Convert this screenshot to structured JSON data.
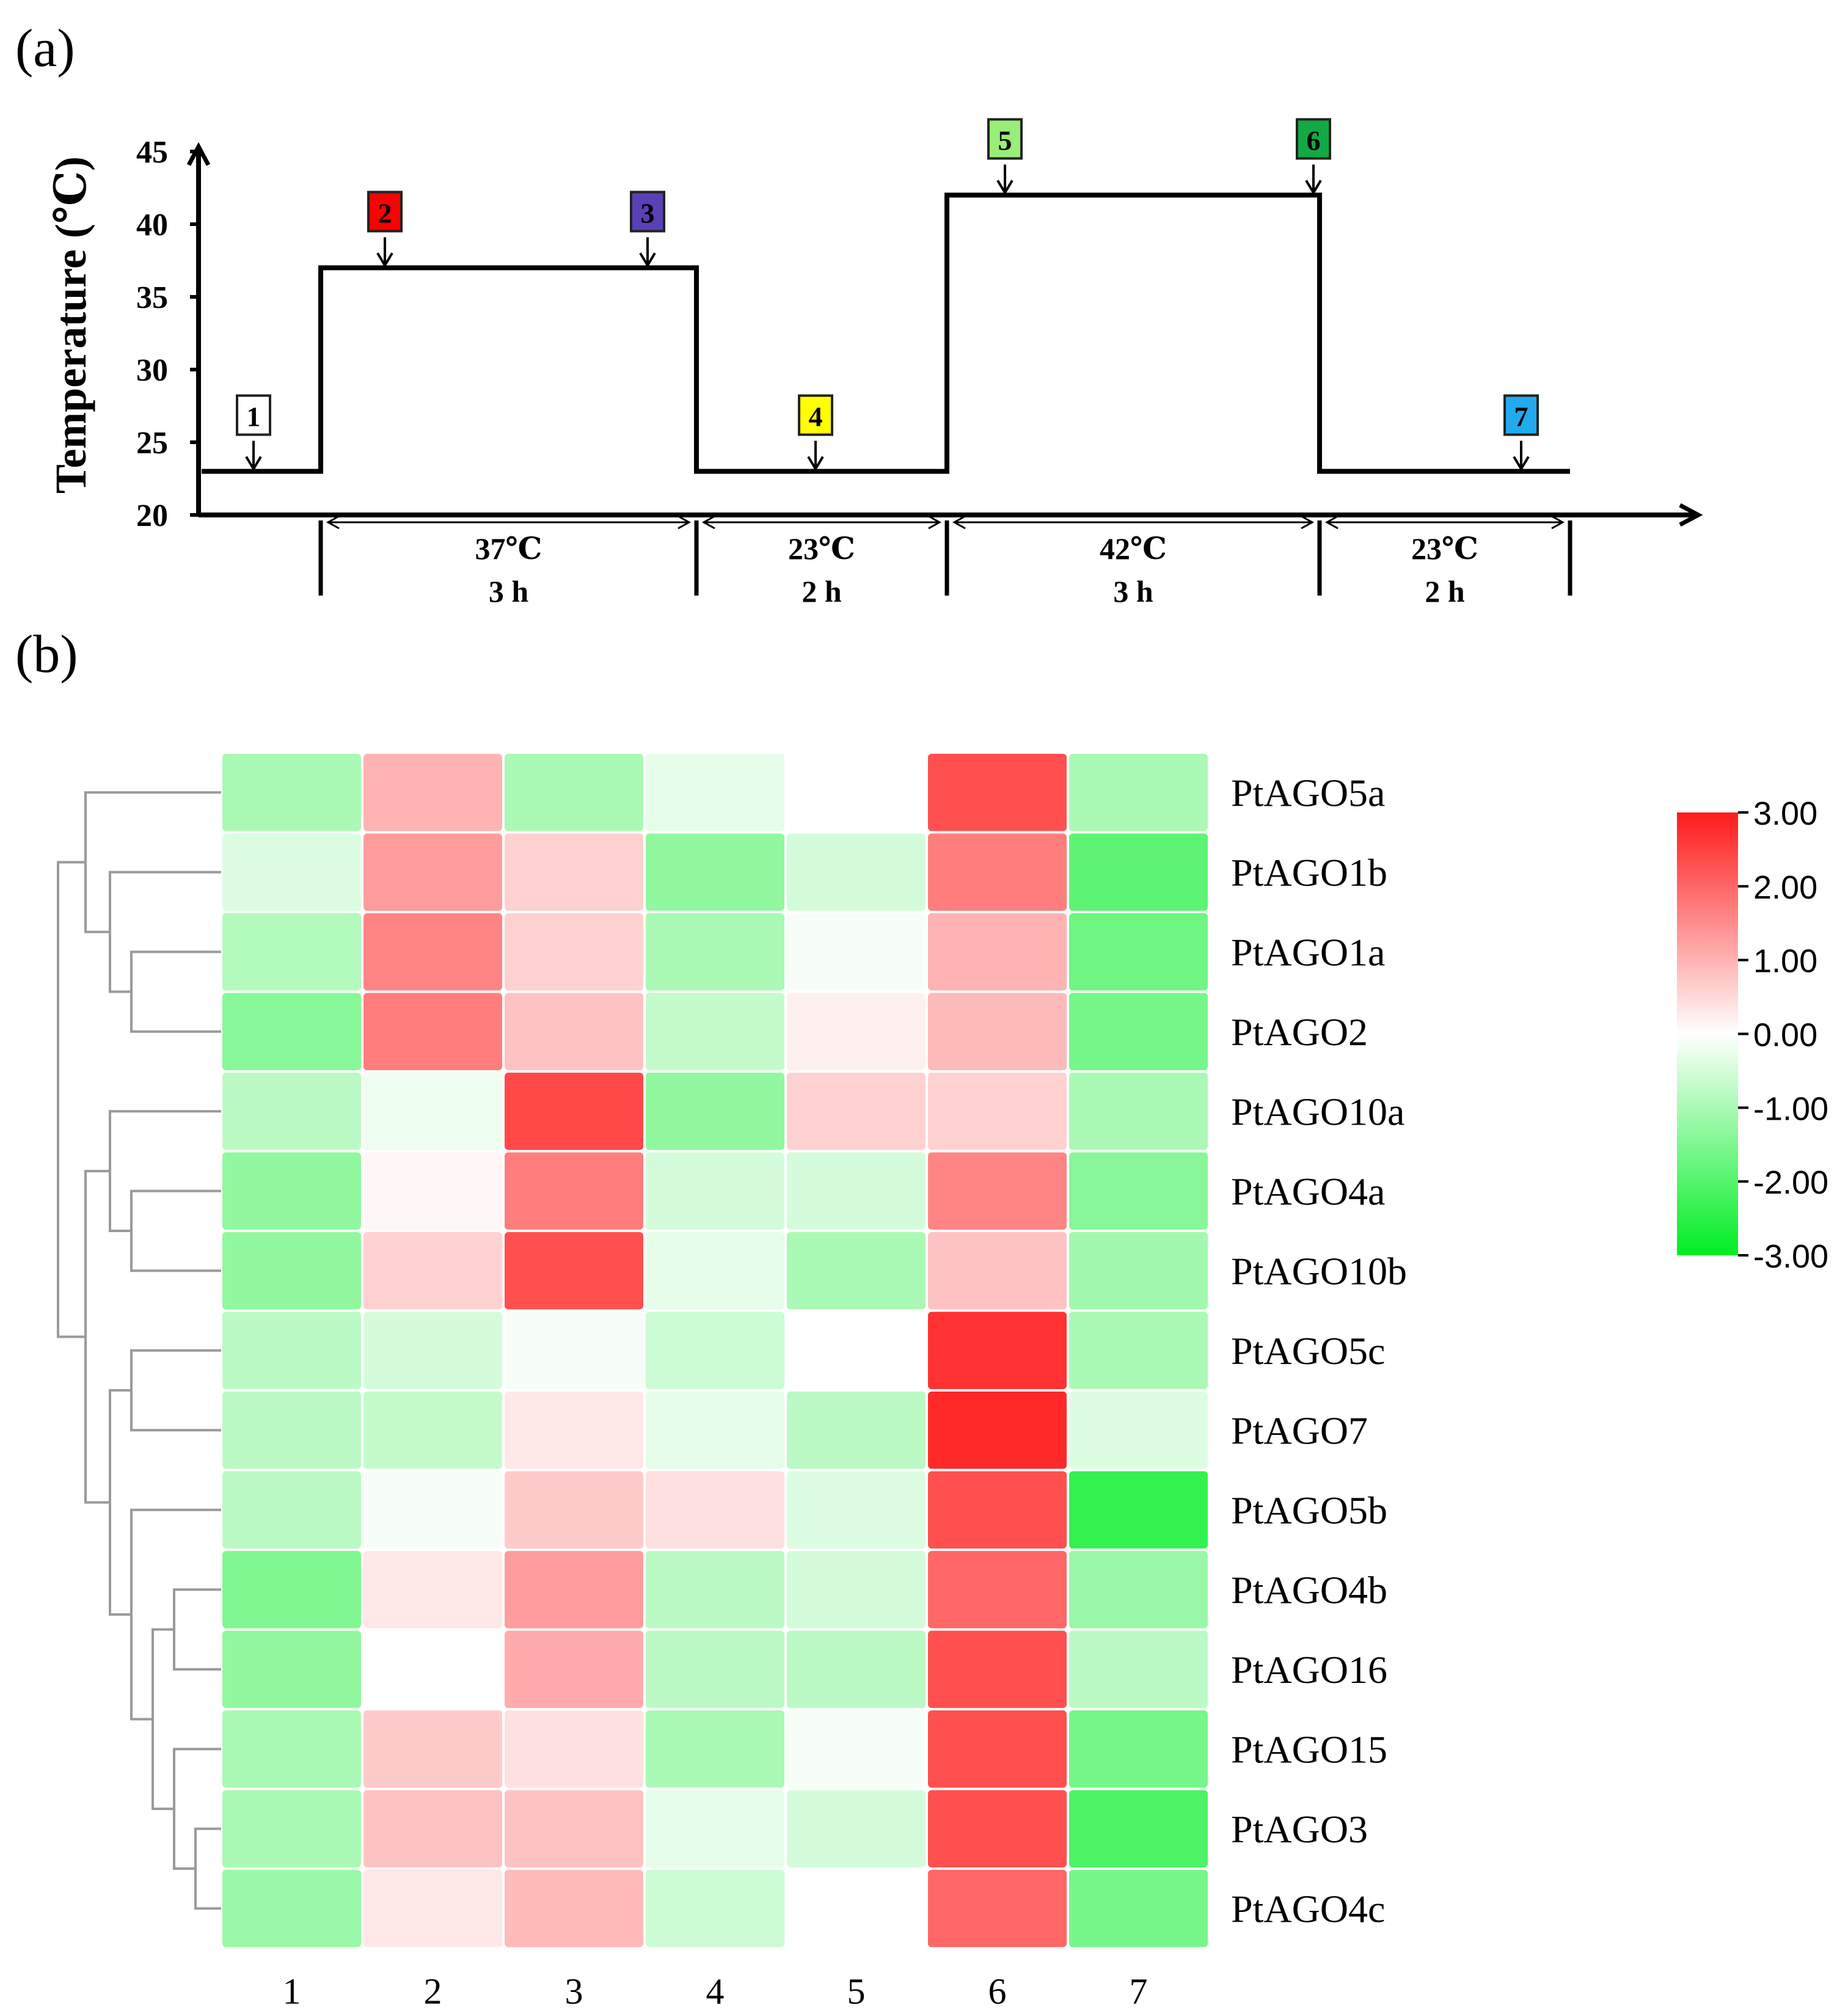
{
  "panel_a": {
    "label": "(a)",
    "chart_data": {
      "type": "line",
      "title": "",
      "ylabel": "Temperature (℃)",
      "xlabel": "",
      "ylim": [
        20,
        45
      ],
      "yticks": [
        "20",
        "25",
        "30",
        "35",
        "40",
        "45"
      ],
      "temperature_profile": [
        {
          "phase": 0,
          "temp": 23
        },
        {
          "phase": 1,
          "temp": 37
        },
        {
          "phase": 2,
          "temp": 23
        },
        {
          "phase": 3,
          "temp": 42
        },
        {
          "phase": 4,
          "temp": 23
        }
      ],
      "phases": [
        {
          "temp_label": "37℃",
          "duration_label": "3 h"
        },
        {
          "temp_label": "23℃",
          "duration_label": "2 h"
        },
        {
          "temp_label": "42℃",
          "duration_label": "3 h"
        },
        {
          "temp_label": "23℃",
          "duration_label": "2 h"
        }
      ],
      "sample_markers": [
        {
          "label": "1",
          "temp": 23,
          "color": "#ffffff"
        },
        {
          "label": "2",
          "temp": 37,
          "color": "#ff0000"
        },
        {
          "label": "3",
          "temp": 37,
          "color": "#5b3fb6"
        },
        {
          "label": "4",
          "temp": 23,
          "color": "#ffff00"
        },
        {
          "label": "5",
          "temp": 42,
          "color": "#99ee77"
        },
        {
          "label": "6",
          "temp": 42,
          "color": "#11aa44"
        },
        {
          "label": "7",
          "temp": 23,
          "color": "#22aaee"
        }
      ]
    }
  },
  "panel_b": {
    "label": "(b)",
    "chart_data": {
      "type": "heatmap",
      "title": "",
      "columns": [
        "1",
        "2",
        "3",
        "4",
        "5",
        "6",
        "7"
      ],
      "rows": [
        "PtAGO5a",
        "PtAGO1b",
        "PtAGO1a",
        "PtAGO2",
        "PtAGO10a",
        "PtAGO4a",
        "PtAGO10b",
        "PtAGO5c",
        "PtAGO7",
        "PtAGO5b",
        "PtAGO4b",
        "PtAGO16",
        "PtAGO15",
        "PtAGO3",
        "PtAGO4c"
      ],
      "values": [
        [
          -1.0,
          1.0,
          -1.0,
          -0.3,
          0.0,
          2.3,
          -1.0
        ],
        [
          -0.4,
          1.3,
          0.6,
          -1.3,
          -0.5,
          1.7,
          -1.9
        ],
        [
          -0.9,
          1.6,
          0.6,
          -1.0,
          -0.1,
          1.0,
          -1.7
        ],
        [
          -1.4,
          1.7,
          0.8,
          -0.7,
          0.2,
          0.9,
          -1.6
        ],
        [
          -0.8,
          -0.2,
          2.4,
          -1.3,
          0.6,
          0.6,
          -1.0
        ],
        [
          -1.3,
          0.1,
          1.7,
          -0.5,
          -0.5,
          1.6,
          -1.4
        ],
        [
          -1.3,
          0.6,
          2.3,
          -0.3,
          -1.0,
          0.8,
          -1.1
        ],
        [
          -0.8,
          -0.5,
          -0.1,
          -0.6,
          0.0,
          2.7,
          -1.0
        ],
        [
          -0.8,
          -0.7,
          0.3,
          -0.3,
          -0.8,
          2.8,
          -0.4
        ],
        [
          -0.8,
          -0.1,
          0.7,
          0.4,
          -0.4,
          2.3,
          -2.4
        ],
        [
          -1.5,
          0.3,
          1.3,
          -0.8,
          -0.5,
          2.0,
          -1.2
        ],
        [
          -1.3,
          0.0,
          1.1,
          -0.8,
          -0.8,
          2.3,
          -0.8
        ],
        [
          -1.0,
          0.7,
          0.4,
          -1.0,
          -0.1,
          2.3,
          -1.6
        ],
        [
          -1.0,
          0.8,
          0.8,
          -0.3,
          -0.5,
          2.3,
          -2.1
        ],
        [
          -1.2,
          0.3,
          0.9,
          -0.6,
          0.0,
          2.0,
          -1.6
        ]
      ],
      "colorscale": {
        "min": -3.0,
        "mid": 0.0,
        "max": 3.0,
        "low_color": "#00ee22",
        "mid_color": "#ffffff",
        "high_color": "#ff1a1a"
      },
      "colorbar_ticks": [
        "3.00",
        "2.00",
        "1.00",
        "0.00",
        "-1.00",
        "-2.00",
        "-3.00"
      ],
      "row_dendrogram": true
    }
  }
}
